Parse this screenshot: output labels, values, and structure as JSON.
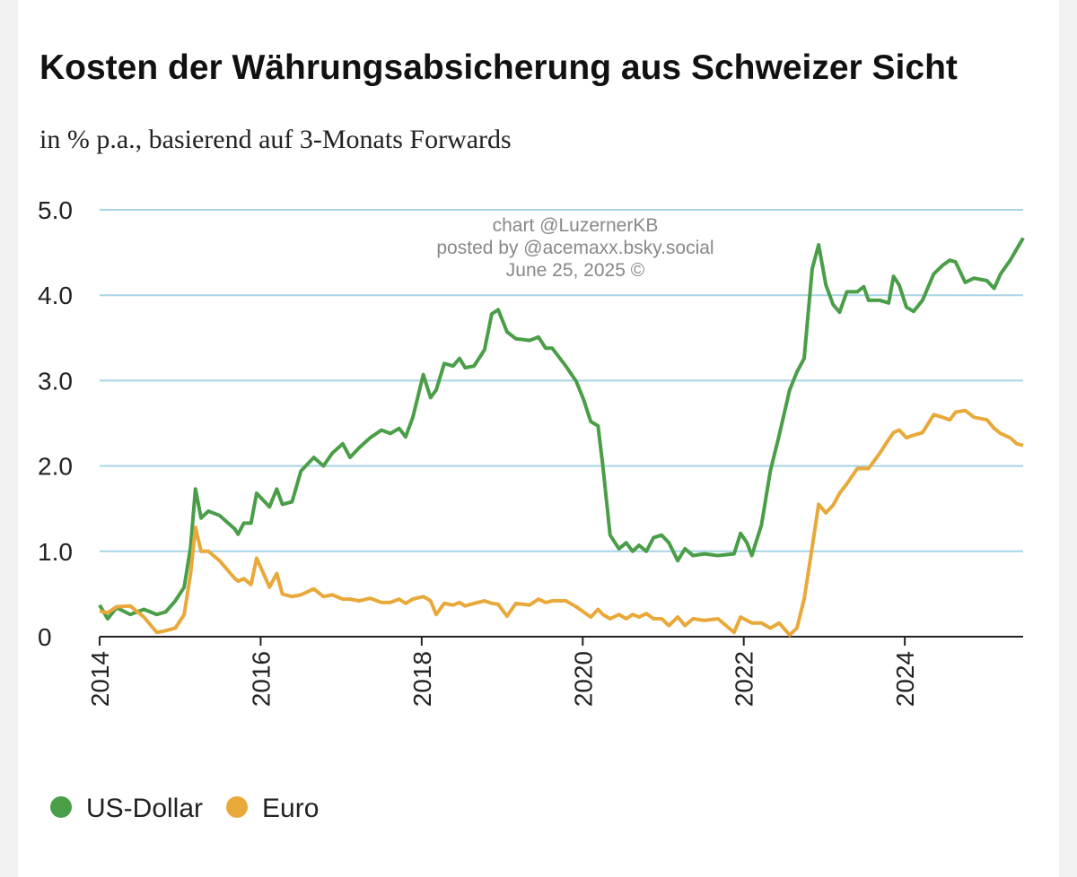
{
  "chart_data": {
    "type": "line",
    "title": "Kosten der Währungsabsicherung aus Schweizer Sicht",
    "subtitle": "in % p.a., basierend auf 3-Monats Forwards",
    "annotations": [
      "chart @LuzernerKB",
      "posted by @acemaxx.bsky.social",
      "June 25, 2025 ©"
    ],
    "x": [
      2014.0,
      2014.1,
      2014.21,
      2014.38,
      2014.55,
      2014.71,
      2014.82,
      2014.94,
      2015.05,
      2015.13,
      2015.19,
      2015.26,
      2015.35,
      2015.49,
      2015.68,
      2015.72,
      2015.79,
      2015.88,
      2015.95,
      2016.11,
      2016.2,
      2016.27,
      2016.39,
      2016.5,
      2016.66,
      2016.78,
      2016.89,
      2017.02,
      2017.11,
      2017.22,
      2017.36,
      2017.5,
      2017.61,
      2017.72,
      2017.8,
      2017.89,
      2018.02,
      2018.11,
      2018.18,
      2018.28,
      2018.39,
      2018.47,
      2018.54,
      2018.65,
      2018.78,
      2018.87,
      2018.95,
      2019.06,
      2019.17,
      2019.34,
      2019.45,
      2019.54,
      2019.62,
      2019.79,
      2019.92,
      2020.01,
      2020.1,
      2020.19,
      2020.25,
      2020.34,
      2020.45,
      2020.54,
      2020.62,
      2020.7,
      2020.79,
      2020.88,
      2020.98,
      2021.07,
      2021.18,
      2021.27,
      2021.37,
      2021.51,
      2021.68,
      2021.88,
      2021.96,
      2022.04,
      2022.1,
      2022.22,
      2022.33,
      2022.44,
      2022.57,
      2022.66,
      2022.75,
      2022.85,
      2022.93,
      2023.02,
      2023.11,
      2023.19,
      2023.28,
      2023.41,
      2023.49,
      2023.55,
      2023.69,
      2023.8,
      2023.86,
      2023.93,
      2024.02,
      2024.11,
      2024.22,
      2024.36,
      2024.47,
      2024.56,
      2024.63,
      2024.75,
      2024.86,
      2025.02,
      2025.11,
      2025.19,
      2025.31,
      2025.39,
      2025.47
    ],
    "series": [
      {
        "name": "US-Dollar",
        "color": "#4a9e48",
        "values": [
          0.37,
          0.21,
          0.34,
          0.26,
          0.32,
          0.26,
          0.29,
          0.42,
          0.58,
          1.05,
          1.73,
          1.39,
          1.47,
          1.42,
          1.26,
          1.2,
          1.33,
          1.33,
          1.68,
          1.52,
          1.73,
          1.55,
          1.58,
          1.94,
          2.1,
          2.0,
          2.15,
          2.26,
          2.1,
          2.21,
          2.33,
          2.42,
          2.38,
          2.44,
          2.34,
          2.57,
          3.07,
          2.8,
          2.89,
          3.2,
          3.17,
          3.26,
          3.15,
          3.17,
          3.36,
          3.78,
          3.83,
          3.57,
          3.49,
          3.47,
          3.51,
          3.38,
          3.38,
          3.17,
          2.99,
          2.78,
          2.52,
          2.47,
          2.0,
          1.19,
          1.03,
          1.1,
          1.0,
          1.07,
          1.0,
          1.16,
          1.19,
          1.1,
          0.89,
          1.03,
          0.95,
          0.97,
          0.95,
          0.97,
          1.21,
          1.1,
          0.95,
          1.31,
          1.94,
          2.36,
          2.89,
          3.1,
          3.26,
          4.31,
          4.59,
          4.12,
          3.89,
          3.8,
          4.04,
          4.04,
          4.1,
          3.94,
          3.94,
          3.91,
          4.22,
          4.12,
          3.86,
          3.81,
          3.94,
          4.25,
          4.35,
          4.41,
          4.39,
          4.15,
          4.2,
          4.17,
          4.08,
          4.25,
          4.41,
          4.54,
          4.67
        ]
      },
      {
        "name": "Euro",
        "color": "#e8a93a",
        "values": [
          0.3,
          0.28,
          0.35,
          0.36,
          0.23,
          0.05,
          0.07,
          0.1,
          0.26,
          0.74,
          1.28,
          1.0,
          1.0,
          0.89,
          0.68,
          0.65,
          0.68,
          0.61,
          0.92,
          0.58,
          0.74,
          0.5,
          0.47,
          0.49,
          0.56,
          0.47,
          0.49,
          0.44,
          0.44,
          0.42,
          0.45,
          0.4,
          0.4,
          0.44,
          0.39,
          0.44,
          0.47,
          0.42,
          0.26,
          0.39,
          0.37,
          0.4,
          0.36,
          0.39,
          0.42,
          0.39,
          0.38,
          0.24,
          0.39,
          0.37,
          0.44,
          0.4,
          0.42,
          0.42,
          0.35,
          0.29,
          0.23,
          0.32,
          0.26,
          0.21,
          0.26,
          0.21,
          0.26,
          0.23,
          0.27,
          0.21,
          0.21,
          0.13,
          0.23,
          0.13,
          0.21,
          0.19,
          0.21,
          0.05,
          0.23,
          0.19,
          0.16,
          0.16,
          0.1,
          0.16,
          0.02,
          0.1,
          0.44,
          1.05,
          1.55,
          1.45,
          1.54,
          1.68,
          1.79,
          1.97,
          1.97,
          1.97,
          2.15,
          2.31,
          2.39,
          2.42,
          2.33,
          2.36,
          2.39,
          2.6,
          2.57,
          2.54,
          2.63,
          2.65,
          2.57,
          2.54,
          2.44,
          2.38,
          2.33,
          2.26,
          2.24
        ]
      }
    ],
    "xlim": [
      2014,
      2025.47
    ],
    "xticks": [
      2014,
      2016,
      2018,
      2020,
      2022,
      2024
    ],
    "ylim": [
      0,
      5
    ],
    "yticks": [
      0,
      {
        "value": 1,
        "label": "1.0"
      },
      {
        "value": 2,
        "label": "2.0"
      },
      {
        "value": 3,
        "label": "3.0"
      },
      {
        "value": 4,
        "label": "4.0"
      },
      {
        "value": 5,
        "label": "5.0"
      }
    ],
    "grid": true,
    "legend": "bottom-left"
  }
}
